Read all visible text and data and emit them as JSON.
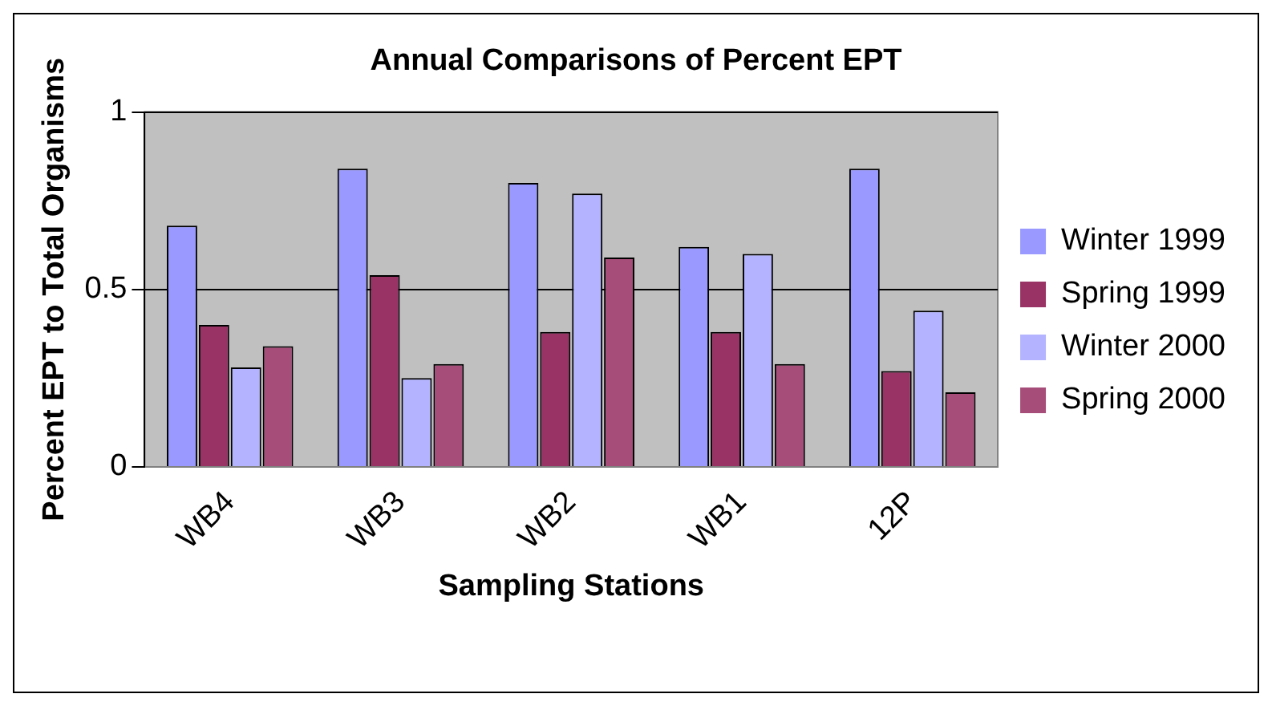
{
  "chart_data": {
    "type": "bar",
    "title": "Annual Comparisons of Percent EPT",
    "xlabel": "Sampling Stations",
    "ylabel": "Percent EPT to Total Organisms",
    "categories": [
      "WB4",
      "WB3",
      "WB2",
      "WB1",
      "12P"
    ],
    "series": [
      {
        "name": "Winter 1999",
        "color": "#9999ff",
        "values": [
          0.68,
          0.84,
          0.8,
          0.62,
          0.84
        ]
      },
      {
        "name": "Spring 1999",
        "color": "#993366",
        "values": [
          0.4,
          0.54,
          0.38,
          0.38,
          0.27
        ]
      },
      {
        "name": "Winter 2000",
        "color": "#b3b3ff",
        "values": [
          0.28,
          0.25,
          0.77,
          0.6,
          0.44
        ]
      },
      {
        "name": "Spring 2000",
        "color": "#a64d79",
        "values": [
          0.34,
          0.29,
          0.59,
          0.29,
          0.21
        ]
      }
    ],
    "ylim": [
      0,
      1
    ],
    "yticks": [
      0,
      0.5,
      1
    ],
    "grid": "y",
    "legend": "right"
  }
}
